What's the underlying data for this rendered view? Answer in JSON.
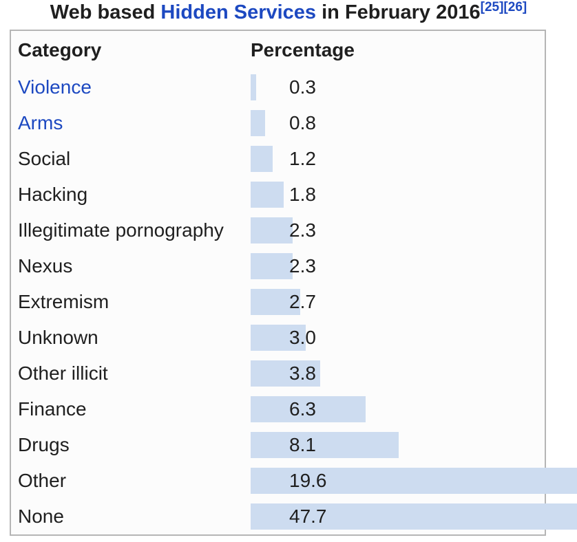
{
  "title": {
    "text_before_link": "Web based ",
    "link_text": "Hidden Services",
    "text_after_link": " in February 2016",
    "citations": [
      "[25]",
      "[26]"
    ]
  },
  "table": {
    "column_headers": [
      "Category",
      "Percentage"
    ]
  },
  "chart_data": {
    "type": "bar",
    "orientation": "horizontal",
    "title": "Web based Hidden Services in February 2016",
    "categories": [
      "Violence",
      "Arms",
      "Social",
      "Hacking",
      "Illegitimate pornography",
      "Nexus",
      "Extremism",
      "Unknown",
      "Other illicit",
      "Finance",
      "Drugs",
      "Other",
      "None"
    ],
    "values": [
      0.3,
      0.8,
      1.2,
      1.8,
      2.3,
      2.3,
      2.7,
      3.0,
      3.8,
      6.3,
      8.1,
      19.6,
      47.7
    ],
    "value_labels": [
      "0.3",
      "0.8",
      "1.2",
      "1.8",
      "2.3",
      "2.3",
      "2.7",
      "3.0",
      "3.8",
      "6.3",
      "8.1",
      "19.6",
      "47.7"
    ],
    "linked_categories": [
      "Violence",
      "Arms"
    ],
    "unit": "%",
    "xlabel": "Percentage",
    "ylabel": "Category",
    "bar_color": "#cddcf0",
    "grid": false,
    "legend": false,
    "sorted": "ascending"
  },
  "colors": {
    "link": "#1d49c1",
    "text": "#1f1f1f",
    "bar": "#cddcf0",
    "table_border": "#b5b5b5",
    "table_bg": "#fcfcfc"
  }
}
